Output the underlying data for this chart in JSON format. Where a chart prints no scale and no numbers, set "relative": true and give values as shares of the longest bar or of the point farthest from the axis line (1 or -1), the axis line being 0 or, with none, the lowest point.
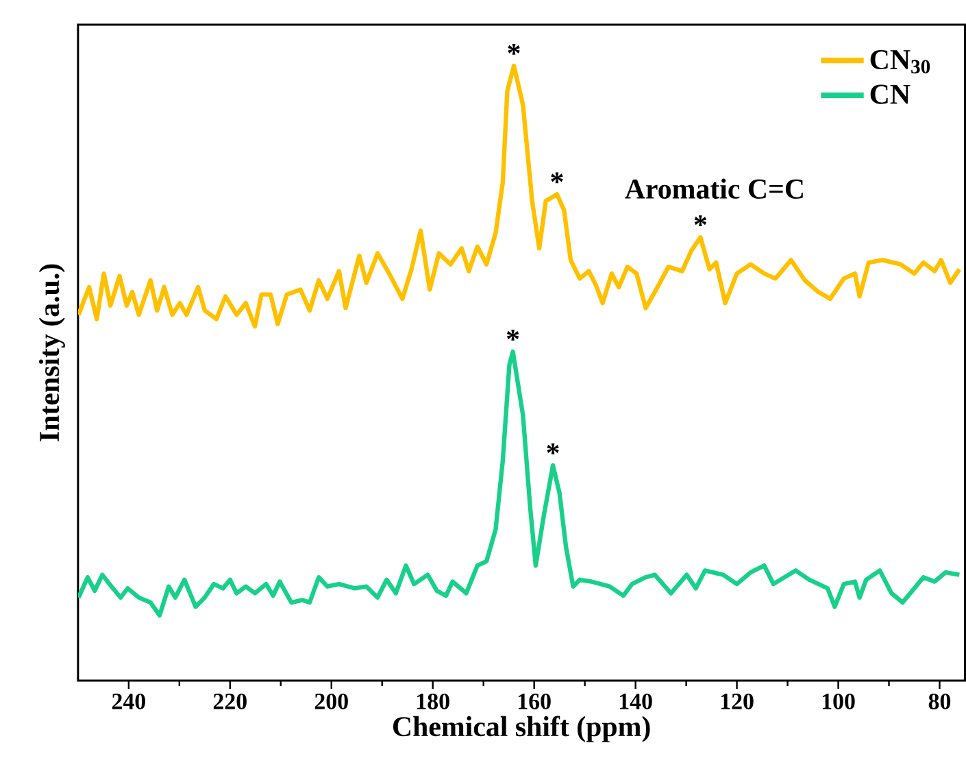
{
  "chart_data": {
    "type": "line",
    "relative": true,
    "xlabel": "Chemical shift (ppm)",
    "ylabel": "Intensity (a.u.)",
    "xlim": [
      250,
      75
    ],
    "xticks": [
      240,
      220,
      200,
      180,
      160,
      140,
      120,
      100,
      80
    ],
    "legend": "top right",
    "series": [
      {
        "name": "CN$_{30}$",
        "color": "#ffc000",
        "x": [
          249.9,
          247.8,
          246.3,
          244.9,
          243.6,
          241.8,
          240.4,
          239.3,
          238.0,
          235.7,
          234.4,
          233.0,
          231.4,
          229.9,
          228.6,
          226.3,
          225.0,
          222.7,
          220.9,
          218.7,
          216.9,
          215.1,
          213.8,
          212.0,
          210.6,
          208.8,
          206.1,
          204.3,
          202.5,
          200.8,
          198.5,
          197.2,
          194.5,
          193.1,
          190.9,
          188.6,
          186.0,
          184.2,
          182.4,
          180.6,
          178.8,
          176.5,
          174.3,
          172.9,
          171.2,
          169.4,
          167.6,
          166.2,
          165.3,
          164.0,
          162.2,
          160.4,
          159.0,
          157.7,
          155.5,
          154.1,
          152.8,
          151.0,
          149.2,
          147.8,
          146.5,
          144.7,
          143.3,
          141.6,
          139.8,
          138.0,
          136.2,
          133.5,
          130.8,
          129.0,
          127.2,
          125.4,
          124.1,
          122.3,
          120.0,
          117.3,
          114.6,
          112.4,
          109.3,
          106.6,
          103.9,
          101.6,
          98.9,
          96.7,
          95.8,
          94.0,
          91.3,
          87.7,
          85.0,
          83.2,
          81.0,
          79.7,
          77.9,
          76.1
        ],
        "values": [
          0.595,
          0.64,
          0.588,
          0.662,
          0.61,
          0.658,
          0.61,
          0.632,
          0.595,
          0.651,
          0.602,
          0.64,
          0.595,
          0.614,
          0.595,
          0.64,
          0.602,
          0.588,
          0.625,
          0.595,
          0.614,
          0.576,
          0.628,
          0.628,
          0.58,
          0.628,
          0.636,
          0.602,
          0.651,
          0.621,
          0.666,
          0.606,
          0.691,
          0.647,
          0.695,
          0.662,
          0.621,
          0.669,
          0.732,
          0.636,
          0.695,
          0.677,
          0.703,
          0.666,
          0.706,
          0.677,
          0.728,
          0.81,
          0.959,
          1,
          0.936,
          0.78,
          0.703,
          0.78,
          0.791,
          0.765,
          0.684,
          0.654,
          0.666,
          0.643,
          0.614,
          0.662,
          0.64,
          0.673,
          0.662,
          0.606,
          0.632,
          0.673,
          0.666,
          0.699,
          0.721,
          0.669,
          0.68,
          0.614,
          0.662,
          0.677,
          0.662,
          0.654,
          0.684,
          0.651,
          0.632,
          0.621,
          0.654,
          0.662,
          0.625,
          0.68,
          0.684,
          0.677,
          0.662,
          0.68,
          0.666,
          0.684,
          0.647,
          0.669
        ]
      },
      {
        "name": "CN",
        "color": "#19d08b",
        "x": [
          249.9,
          248.1,
          246.7,
          245.2,
          243.4,
          241.6,
          240.2,
          238.0,
          235.7,
          233.9,
          232.1,
          230.8,
          229.0,
          226.8,
          225.0,
          223.2,
          221.4,
          220.0,
          218.7,
          216.9,
          215.1,
          212.9,
          211.5,
          210.2,
          207.9,
          205.7,
          204.3,
          202.5,
          200.8,
          198.5,
          195.4,
          193.1,
          190.9,
          189.1,
          187.3,
          185.3,
          183.7,
          181.0,
          179.2,
          177.4,
          176.1,
          173.4,
          171.2,
          169.4,
          167.6,
          166.2,
          164.9,
          164.2,
          162.2,
          160.8,
          159.7,
          158.1,
          156.3,
          155.0,
          153.7,
          152.3,
          151.0,
          148.7,
          145.1,
          142.4,
          140.7,
          138.0,
          136.2,
          133.0,
          129.9,
          128.1,
          126.3,
          122.7,
          120.0,
          117.3,
          114.6,
          112.8,
          108.4,
          105.7,
          102.1,
          100.7,
          98.9,
          96.7,
          95.8,
          94.5,
          91.8,
          89.5,
          87.3,
          85.0,
          83.2,
          81.0,
          78.8,
          76.1
        ],
        "values": [
          0.135,
          0.168,
          0.146,
          0.172,
          0.153,
          0.135,
          0.15,
          0.135,
          0.127,
          0.106,
          0.153,
          0.135,
          0.164,
          0.12,
          0.135,
          0.157,
          0.15,
          0.164,
          0.142,
          0.153,
          0.142,
          0.157,
          0.138,
          0.161,
          0.127,
          0.131,
          0.127,
          0.168,
          0.153,
          0.157,
          0.15,
          0.153,
          0.135,
          0.164,
          0.142,
          0.187,
          0.157,
          0.172,
          0.146,
          0.138,
          0.161,
          0.142,
          0.187,
          0.194,
          0.246,
          0.357,
          0.513,
          0.535,
          0.431,
          0.283,
          0.187,
          0.268,
          0.35,
          0.305,
          0.216,
          0.153,
          0.164,
          0.161,
          0.153,
          0.138,
          0.157,
          0.168,
          0.172,
          0.142,
          0.172,
          0.15,
          0.179,
          0.172,
          0.157,
          0.176,
          0.187,
          0.157,
          0.179,
          0.164,
          0.15,
          0.12,
          0.157,
          0.161,
          0.135,
          0.164,
          0.179,
          0.142,
          0.127,
          0.15,
          0.168,
          0.161,
          0.176,
          0.172
        ]
      }
    ],
    "annotations": [
      {
        "text": "*",
        "x": 164.0,
        "y": 1
      },
      {
        "text": "*",
        "x": 155.5,
        "y": 0.791
      },
      {
        "text": "*",
        "x": 127.2,
        "y": 0.721
      },
      "Aromatic C=C",
      {
        "text": "*",
        "x": 164.2,
        "y": 0.535
      },
      {
        "text": "*",
        "x": 156.3,
        "y": 0.35
      }
    ]
  }
}
